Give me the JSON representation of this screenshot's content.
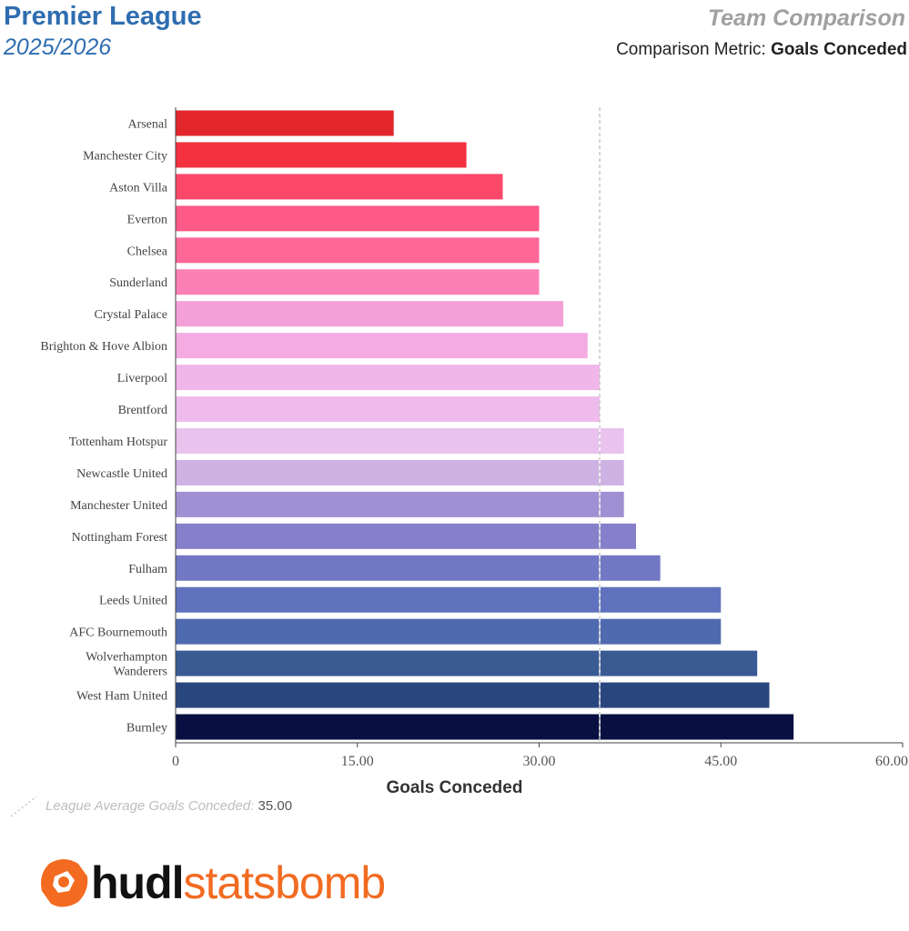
{
  "header": {
    "league": "Premier League",
    "season": "2025/2026",
    "comparison_title": "Team Comparison",
    "metric_prefix": "Comparison Metric: ",
    "metric_name": "Goals Conceded"
  },
  "average_note": {
    "label": "League Average Goals Conceded:",
    "value": "35.00"
  },
  "logo": {
    "part1": "hudl",
    "part2": "statsbomb",
    "color": "#f26b21"
  },
  "chart_data": {
    "type": "bar",
    "orientation": "horizontal",
    "xlabel": "Goals Conceded",
    "xlim": [
      0,
      60
    ],
    "xticks": [
      0,
      15,
      30,
      45,
      60
    ],
    "xtick_labels": [
      "0",
      "15.00",
      "30.00",
      "45.00",
      "60.00"
    ],
    "average_line": 35,
    "categories": [
      [
        "Arsenal"
      ],
      [
        "Manchester City"
      ],
      [
        "Aston Villa"
      ],
      [
        "Everton"
      ],
      [
        "Chelsea"
      ],
      [
        "Sunderland"
      ],
      [
        "Crystal Palace"
      ],
      [
        "Brighton & Hove Albion"
      ],
      [
        "Liverpool"
      ],
      [
        "Brentford"
      ],
      [
        "Tottenham Hotspur"
      ],
      [
        "Newcastle United"
      ],
      [
        "Manchester United"
      ],
      [
        "Nottingham Forest"
      ],
      [
        "Fulham"
      ],
      [
        "Leeds United"
      ],
      [
        "AFC Bournemouth"
      ],
      [
        "Wolverhampton",
        "Wanderers"
      ],
      [
        "West Ham United"
      ],
      [
        "Burnley"
      ]
    ],
    "values": [
      18,
      24,
      27,
      30,
      30,
      30,
      32,
      34,
      35,
      35,
      37,
      37,
      37,
      38,
      40,
      45,
      45,
      48,
      49,
      51
    ],
    "colors": [
      "#e2262c",
      "#f3313f",
      "#fb4868",
      "#fd5a87",
      "#fd6898",
      "#fb80b6",
      "#f4a0d8",
      "#f3abe2",
      "#f1b6e9",
      "#efbbec",
      "#e9c2ee",
      "#ceb2e3",
      "#9f90d3",
      "#8680cb",
      "#7179c4",
      "#6072bd",
      "#506aaf",
      "#395a93",
      "#2a467f",
      "#090f40"
    ]
  }
}
